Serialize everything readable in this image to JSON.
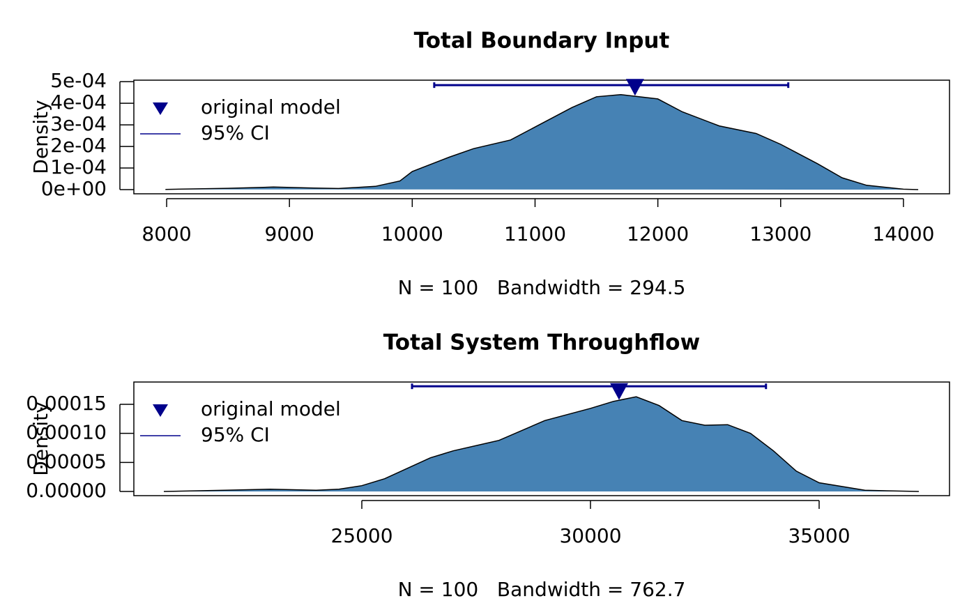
{
  "chart_data": [
    {
      "type": "density",
      "title": "Total Boundary Input",
      "xlabel": "N = 100   Bandwidth = 294.5",
      "ylabel": "Density",
      "x": [
        7990,
        8500,
        8870,
        9200,
        9400,
        9700,
        9900,
        10000,
        10300,
        10500,
        10800,
        11000,
        11300,
        11500,
        11700,
        12000,
        12200,
        12500,
        12800,
        13000,
        13300,
        13500,
        13700,
        14000,
        14120
      ],
      "values": [
        1e-06,
        6e-06,
        1.2e-05,
        7e-06,
        5e-06,
        1.5e-05,
        4e-05,
        8.4e-05,
        0.00015,
        0.00019,
        0.00023,
        0.00029,
        0.00038,
        0.00043,
        0.00044,
        0.00042,
        0.00036,
        0.000295,
        0.00026,
        0.00021,
        0.00012,
        5.5e-05,
        2e-05,
        2e-06,
        0
      ],
      "color": "#4682b4",
      "point": {
        "name": "original model",
        "x": 11814,
        "value": 0.000474,
        "color": "#00008b"
      },
      "ci": {
        "name": "95% CI",
        "lower": 10179,
        "upper": 13062,
        "value": 0.000484,
        "color": "#00008b"
      },
      "xlim": [
        7733,
        14375
      ],
      "ylim": [
        -1.94e-05,
        0.000507
      ],
      "xticks": [
        8000,
        9000,
        10000,
        11000,
        12000,
        13000,
        14000
      ],
      "yticks": [
        {
          "value": 0,
          "label": "0e+00"
        },
        {
          "value": 0.0001,
          "label": "1e-04"
        },
        {
          "value": 0.0002,
          "label": "2e-04"
        },
        {
          "value": 0.0003,
          "label": "3e-04"
        },
        {
          "value": 0.0004,
          "label": "4e-04"
        },
        {
          "value": 0.0005,
          "label": "5e-04"
        }
      ]
    },
    {
      "type": "density",
      "title": "Total System Throughflow",
      "xlabel": "N = 100   Bandwidth = 762.7",
      "ylabel": "Density",
      "x": [
        20670,
        22000,
        23000,
        24000,
        24500,
        25000,
        25500,
        26000,
        26500,
        27000,
        28000,
        29000,
        30000,
        30500,
        31000,
        31500,
        32000,
        32500,
        33000,
        33500,
        34000,
        34500,
        35000,
        36000,
        37180
      ],
      "values": [
        0,
        2e-06,
        4e-06,
        2e-06,
        4e-06,
        1e-05,
        2.2e-05,
        4e-05,
        5.8e-05,
        7e-05,
        8.8e-05,
        0.000122,
        0.000143,
        0.000155,
        0.000163,
        0.000148,
        0.000122,
        0.000114,
        0.000115,
        0.0001,
        7e-05,
        3.5e-05,
        1.5e-05,
        2e-06,
        0
      ],
      "color": "#4682b4",
      "point": {
        "name": "original model",
        "x": 30625,
        "value": 0.000172,
        "color": "#00008b"
      },
      "ci": {
        "name": "95% CI",
        "lower": 26098,
        "upper": 33838,
        "value": 0.000181,
        "color": "#00008b"
      },
      "xlim": [
        20015,
        37851
      ],
      "ylim": [
        -7.2e-06,
        0.0001884
      ],
      "xticks": [
        25000,
        30000,
        35000
      ],
      "yticks": [
        {
          "value": 0,
          "label": "0.00000"
        },
        {
          "value": 5e-05,
          "label": "0.00005"
        },
        {
          "value": 0.0001,
          "label": "0.00010"
        },
        {
          "value": 0.00015,
          "label": "0.00015"
        }
      ]
    }
  ]
}
